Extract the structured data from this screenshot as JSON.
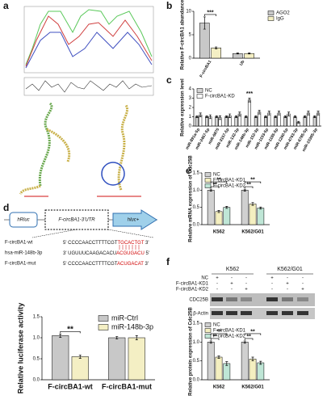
{
  "panel_labels": [
    "a",
    "b",
    "c",
    "d",
    "e",
    "f"
  ],
  "schematic": {
    "boxes": [
      "hRluc",
      "F-circBA1-3'UTR",
      "hluc+"
    ],
    "sequences": [
      {
        "name": "F-circBA1-wt",
        "seq": [
          "5' CCCCAACCTTTTCGT",
          "TGCACTGT",
          " 3'"
        ]
      },
      {
        "name": "hsa-miR-148b-3p",
        "seq": [
          "3' UGUUUCAAGACACU",
          "ACGUGACU",
          " 5'"
        ]
      },
      {
        "name": "F-circBA1-mut",
        "seq": [
          "5' CCCCAACCTTTTCGT",
          "ACUGACAT",
          " 3'"
        ]
      }
    ]
  },
  "blot": {
    "cell_lines": [
      "K562",
      "K562/G01"
    ],
    "conditions": [
      "NC",
      "F-circBA1-KD1",
      "F-circBA1-KD2"
    ],
    "signs": [
      [
        "+",
        "-",
        "-",
        "+",
        "-",
        "-"
      ],
      [
        "-",
        "+",
        "-",
        "-",
        "+",
        "-"
      ],
      [
        "-",
        "-",
        "+",
        "-",
        "-",
        "+"
      ]
    ],
    "proteins": [
      "CDC25B",
      "β-Actin"
    ]
  },
  "chart_data": [
    {
      "type": "bar",
      "ylabel": "Relative F-circBA1 abundance",
      "categories": [
        "F-circBA1",
        "Ub"
      ],
      "series": [
        {
          "name": "AGO2",
          "color": "#c8c8c8",
          "values": [
            7.5,
            1.0
          ],
          "errors": [
            1.3,
            0.1
          ]
        },
        {
          "name": "IgG",
          "color": "#f4efc4",
          "values": [
            2.2,
            1.0
          ],
          "errors": [
            0.2,
            0.1
          ]
        }
      ],
      "ylim": [
        0,
        10
      ],
      "yticks": [
        0,
        5,
        10
      ],
      "legend": "outside right",
      "annotations": [
        "***"
      ]
    },
    {
      "type": "bar",
      "ylabel": "Relative expression level",
      "categories": [
        "miR-891a-5p",
        "miR-2467-5p",
        "miR-6870",
        "miR-3157-5p",
        "miR-132-3p",
        "miR-148b-3p",
        "miR-152-3p",
        "miR-1193-5p",
        "miR-1185-5p",
        "miR-1260-5p",
        "miR-4763-3p",
        "miR-6785-5p",
        "miR-10395-3p"
      ],
      "series": [
        {
          "name": "NC",
          "color": "#d4d4d4",
          "values": [
            1,
            1,
            1,
            1,
            1,
            1,
            1,
            1,
            1,
            1,
            1,
            1,
            1
          ],
          "errors": [
            0.1,
            0.1,
            0.1,
            0.1,
            0.1,
            0.1,
            0.1,
            0.1,
            0.1,
            0.1,
            0.1,
            0.1,
            0.1
          ]
        },
        {
          "name": "F-circBA1-KD",
          "color": "#ffffff",
          "values": [
            1.2,
            1.0,
            0.9,
            1.1,
            1.3,
            2.8,
            1.5,
            1.4,
            1.4,
            1.3,
            0.4,
            1.4,
            1.4
          ],
          "errors": [
            0.2,
            0.2,
            0.2,
            0.2,
            0.2,
            0.2,
            0.2,
            0.2,
            0.2,
            0.2,
            0.1,
            0.2,
            0.2
          ]
        }
      ],
      "ylim": [
        0,
        4
      ],
      "yticks": [
        0,
        1,
        2,
        3,
        4
      ],
      "legend": "upper left",
      "annotations": [
        "***"
      ]
    },
    {
      "type": "bar",
      "ylabel": "Relative luciferase activity",
      "categories": [
        "F-circBA1-wt",
        "F-circBA1-mut"
      ],
      "series": [
        {
          "name": "miR-Ctrl",
          "color": "#c8c8c8",
          "values": [
            1.05,
            1.0
          ],
          "errors": [
            0.04,
            0.03
          ]
        },
        {
          "name": "miR-148b-3p",
          "color": "#f4efc4",
          "values": [
            0.55,
            1.0
          ],
          "errors": [
            0.04,
            0.05
          ]
        }
      ],
      "ylim": [
        0,
        1.5
      ],
      "yticks": [
        {
          "value": 0,
          "label": "0.0"
        },
        {
          "value": 0.5,
          "label": "0.5"
        },
        {
          "value": 1,
          "label": "1.0"
        },
        {
          "value": 1.5,
          "label": "1.5"
        }
      ],
      "legend": "upper right",
      "annotations": [
        "**"
      ]
    },
    {
      "type": "bar",
      "ylabel": "Relative mRNA expression of Cdc25B",
      "categories": [
        "K562",
        "K562/G01"
      ],
      "series": [
        {
          "name": "NC",
          "color": "#d0d0d0",
          "values": [
            1.0,
            1.0
          ],
          "errors": [
            0.03,
            0.03
          ]
        },
        {
          "name": "F-circBA1-KD1",
          "color": "#f4efc0",
          "values": [
            0.38,
            0.6
          ],
          "errors": [
            0.03,
            0.04
          ]
        },
        {
          "name": "F-circBA1-KD2",
          "color": "#bfe6d6",
          "values": [
            0.5,
            0.48
          ],
          "errors": [
            0.03,
            0.03
          ]
        }
      ],
      "ylim": [
        0,
        1.5
      ],
      "yticks": [
        {
          "value": 0,
          "label": "0.0"
        },
        {
          "value": 0.5,
          "label": "0.5"
        },
        {
          "value": 1,
          "label": "1.0"
        },
        {
          "value": 1.5,
          "label": "1.5"
        }
      ],
      "legend": "upper left",
      "annotations": [
        "**",
        "**",
        "**",
        "**"
      ]
    },
    {
      "type": "bar",
      "ylabel": "Relative protein expression of Cdc25B",
      "categories": [
        "K562",
        "K562/G01"
      ],
      "series": [
        {
          "name": "NC",
          "color": "#d0d0d0",
          "values": [
            1.0,
            1.0
          ],
          "errors": [
            0.03,
            0.03
          ]
        },
        {
          "name": "F-circBA1-KD1",
          "color": "#f4efc0",
          "values": [
            0.6,
            0.55
          ],
          "errors": [
            0.03,
            0.05
          ]
        },
        {
          "name": "F-circBA1-KD2",
          "color": "#bfe6d6",
          "values": [
            0.43,
            0.45
          ],
          "errors": [
            0.05,
            0.04
          ]
        }
      ],
      "ylim": [
        0,
        1.5
      ],
      "yticks": [
        {
          "value": 0,
          "label": "0.0"
        },
        {
          "value": 0.5,
          "label": "0.5"
        },
        {
          "value": 1,
          "label": "1.0"
        },
        {
          "value": 1.5,
          "label": "1.5"
        }
      ],
      "legend": "upper left",
      "annotations": [
        "**",
        "**",
        "**",
        "**"
      ]
    }
  ]
}
